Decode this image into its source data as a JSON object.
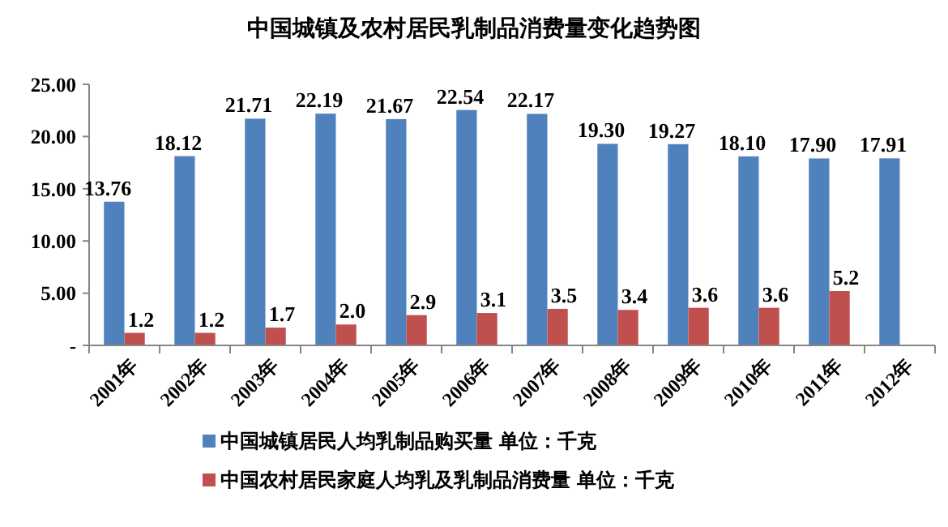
{
  "chart_data": {
    "type": "bar",
    "title": "中国城镇及农村居民乳制品消费量变化趋势图",
    "categories": [
      "2001年",
      "2002年",
      "2003年",
      "2004年",
      "2005年",
      "2006年",
      "2007年",
      "2008年",
      "2009年",
      "2010年",
      "2011年",
      "2012年"
    ],
    "series": [
      {
        "name": "中国城镇居民人均乳制品购买量 单位：千克",
        "color": "#4f81bd",
        "values": [
          13.76,
          18.12,
          21.71,
          22.19,
          21.67,
          22.54,
          22.17,
          19.3,
          19.27,
          18.1,
          17.9,
          17.91
        ],
        "value_labels": [
          "13.76",
          "18.12",
          "21.71",
          "22.19",
          "21.67",
          "22.54",
          "22.17",
          "19.30",
          "19.27",
          "18.10",
          "17.90",
          "17.91"
        ]
      },
      {
        "name": "中国农村居民家庭人均乳及乳制品消费量 单位：千克",
        "color": "#c0504d",
        "values": [
          1.2,
          1.2,
          1.7,
          2.0,
          2.9,
          3.1,
          3.5,
          3.4,
          3.6,
          3.6,
          5.2,
          null
        ],
        "value_labels": [
          "1.2",
          "1.2",
          "1.7",
          "2.0",
          "2.9",
          "3.1",
          "3.5",
          "3.4",
          "3.6",
          "3.6",
          "5.2",
          null
        ]
      }
    ],
    "ylim": [
      0,
      25
    ],
    "yticks": [
      {
        "value": 0,
        "label": "-"
      },
      {
        "value": 5,
        "label": "5.00"
      },
      {
        "value": 10,
        "label": "10.00"
      },
      {
        "value": 15,
        "label": "15.00"
      },
      {
        "value": 20,
        "label": "20.00"
      },
      {
        "value": 25,
        "label": "25.00"
      }
    ],
    "grid": false,
    "legend": "bottom"
  }
}
